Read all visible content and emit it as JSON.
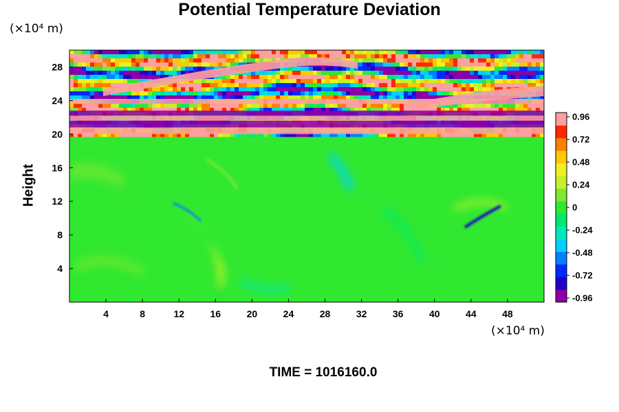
{
  "chart_data": {
    "type": "heatmap",
    "title": "Potential Temperature Deviation",
    "ylabel": "Height",
    "x_unit_label": "(×10⁴ m)",
    "y_unit_label": "(×10⁴ m)",
    "xlim": [
      0,
      52
    ],
    "ylim": [
      0,
      30
    ],
    "x_ticks": [
      "4",
      "8",
      "12",
      "16",
      "20",
      "24",
      "28",
      "32",
      "36",
      "40",
      "44",
      "48"
    ],
    "y_ticks": [
      "4",
      "8",
      "12",
      "16",
      "20",
      "24",
      "28"
    ],
    "colorbar": {
      "range": [
        -1.0,
        1.0
      ],
      "labels": [
        "0.96",
        "0.72",
        "0.48",
        "0.24",
        "0",
        "-0.24",
        "-0.48",
        "-0.72",
        "-0.96"
      ],
      "colors": [
        "#8b00a8",
        "#2200c8",
        "#0028ff",
        "#0080ff",
        "#00d0ff",
        "#00e8c0",
        "#00e870",
        "#30e830",
        "#7ee832",
        "#c8f028",
        "#f0f020",
        "#ffc800",
        "#ff8000",
        "#ff2800",
        "#ffa0a0"
      ]
    },
    "field_regions": [
      {
        "region": "lower",
        "y_range": [
          0,
          20
        ],
        "dominant_value": -0.05
      },
      {
        "region": "upper",
        "y_range": [
          20,
          30
        ],
        "values_range": [
          -1.0,
          1.0
        ]
      }
    ],
    "annotation": "TIME = 1016160.0"
  }
}
